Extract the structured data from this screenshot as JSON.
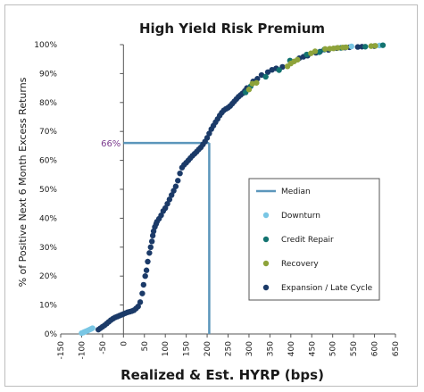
{
  "chart_data": {
    "type": "scatter",
    "title": "High Yield Risk Premium",
    "xlabel": "Realized & Est. HYRP (bps)",
    "ylabel": "% of Positive Next 6 Month Excess Returns",
    "xlim": [
      -150,
      650
    ],
    "ylim": [
      0,
      100
    ],
    "x_ticks": [
      -150,
      -100,
      -50,
      0,
      50,
      100,
      150,
      200,
      250,
      300,
      350,
      400,
      450,
      500,
      550,
      600,
      650
    ],
    "y_ticks": [
      0,
      10,
      20,
      30,
      40,
      50,
      60,
      70,
      80,
      90,
      100
    ],
    "y_tick_suffix": "%",
    "annotation": {
      "label": "66%",
      "x": 205,
      "y": 66
    },
    "legend": {
      "placement": "right-center",
      "entries": [
        {
          "name": "Median",
          "kind": "line",
          "color": "#5b96bb"
        },
        {
          "name": "Downturn",
          "kind": "marker",
          "color": "#79c6e4"
        },
        {
          "name": "Credit Repair",
          "kind": "marker",
          "color": "#137370"
        },
        {
          "name": "Recovery",
          "kind": "marker",
          "color": "#8ea33a"
        },
        {
          "name": "Expansion / Late Cycle",
          "kind": "marker",
          "color": "#1b3a68"
        }
      ]
    },
    "series": [
      {
        "name": "Downturn",
        "color": "#79c6e4",
        "x": [
          -100,
          -96,
          -92,
          -88,
          -85,
          -81,
          -78,
          -74,
          545,
          612
        ],
        "y": [
          0.3,
          0.5,
          0.8,
          1.0,
          1.2,
          1.5,
          1.7,
          2.0,
          99.4,
          99.7
        ]
      },
      {
        "name": "Credit Repair",
        "color": "#137370",
        "x": [
          292,
          304,
          340,
          372,
          398,
          438,
          468,
          480,
          520,
          578,
          620
        ],
        "y": [
          83.5,
          85.6,
          88.9,
          91.2,
          94.5,
          96.6,
          97.4,
          98.3,
          98.9,
          99.3,
          99.8
        ]
      },
      {
        "name": "Recovery",
        "color": "#8ea33a",
        "x": [
          300,
          308,
          318,
          392,
          400,
          408,
          416,
          448,
          458,
          482,
          493,
          502,
          512,
          524,
          532,
          592,
          602
        ],
        "y": [
          84.5,
          86.5,
          86.8,
          92.5,
          93.5,
          94.2,
          94.8,
          97.0,
          97.7,
          98.5,
          98.6,
          98.7,
          98.9,
          99.0,
          99.1,
          99.5,
          99.6
        ]
      },
      {
        "name": "Expansion / Late Cycle",
        "color": "#1b3a68",
        "x": [
          -60,
          -55,
          -50,
          -45,
          -40,
          -35,
          -30,
          -25,
          -20,
          -15,
          -10,
          -5,
          0,
          5,
          10,
          15,
          20,
          25,
          30,
          35,
          40,
          45,
          48,
          52,
          55,
          58,
          62,
          65,
          68,
          70,
          72,
          75,
          78,
          80,
          85,
          90,
          95,
          100,
          105,
          110,
          115,
          120,
          125,
          130,
          135,
          140,
          145,
          150,
          155,
          160,
          165,
          170,
          175,
          180,
          185,
          190,
          195,
          200,
          205,
          210,
          215,
          220,
          225,
          230,
          235,
          240,
          245,
          250,
          255,
          260,
          265,
          270,
          275,
          280,
          285,
          290,
          295,
          310,
          320,
          330,
          345,
          355,
          365,
          380,
          420,
          430,
          440,
          460,
          470,
          490,
          510,
          530,
          540,
          560,
          570,
          600
        ],
        "y": [
          1.5,
          2.0,
          2.5,
          3.0,
          3.6,
          4.2,
          4.8,
          5.3,
          5.7,
          6.0,
          6.3,
          6.6,
          6.9,
          7.2,
          7.5,
          7.7,
          7.9,
          8.2,
          8.8,
          9.5,
          11.0,
          14.0,
          17.0,
          20.0,
          22.0,
          25.0,
          28.0,
          30.0,
          32.0,
          34.0,
          35.5,
          37.0,
          38.0,
          38.8,
          39.8,
          41.0,
          42.5,
          43.5,
          45.0,
          46.5,
          48.0,
          49.5,
          51.0,
          53.0,
          55.5,
          57.5,
          58.5,
          59.2,
          60.0,
          60.8,
          61.6,
          62.3,
          63.0,
          63.8,
          64.5,
          65.5,
          66.5,
          67.8,
          69.3,
          70.8,
          72.0,
          73.2,
          74.3,
          75.5,
          76.5,
          77.3,
          77.8,
          78.2,
          78.8,
          79.6,
          80.4,
          81.2,
          82.0,
          82.6,
          83.2,
          84.0,
          85.0,
          87.3,
          88.2,
          89.5,
          90.5,
          91.3,
          91.8,
          92.3,
          95.3,
          95.8,
          96.2,
          97.2,
          97.6,
          98.2,
          98.8,
          99.0,
          99.1,
          99.2,
          99.3,
          99.5
        ]
      }
    ],
    "median_line": {
      "x": 205,
      "y": 66
    }
  }
}
